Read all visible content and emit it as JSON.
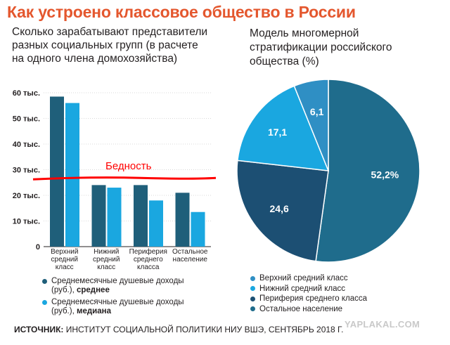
{
  "title": "Как устроено классовое общество в России",
  "bar_subtitle": "Сколько зарабатывают представители разных социальных групп (в расчете на одного члена домохозяйства)",
  "pie_subtitle": "Модель многомерной стратификации российского общества (%)",
  "poverty_label": "Бедность",
  "source": {
    "label": "ИСТОЧНИК:",
    "text": "ИНСТИТУТ СОЦИАЛЬНОЙ ПОЛИТИКИ НИУ ВШЭ, СЕНТЯБРЬ 2018 Г."
  },
  "watermark": "YAPLAKAL.COM",
  "colors": {
    "title": "#e4572e",
    "dark": "#1f5f7a",
    "light": "#1aa7e0",
    "poverty_line": "#ff0000",
    "pie": [
      "#1f6c8c",
      "#1c4f73",
      "#1aa7e0",
      "#2f8fc4"
    ]
  },
  "bar_legend": [
    {
      "text": "Среднемесячные душевые доходы (руб.), ",
      "bold": "среднее"
    },
    {
      "text": "Среднемесячные душевые доходы (руб.), ",
      "bold": "медиана"
    }
  ],
  "pie_legend": [
    "Верхний средний класс",
    "Нижний средний класс",
    "Периферия среднего класса",
    "Остальное население"
  ],
  "chart_data": [
    {
      "type": "bar",
      "categories": [
        [
          "Верхний",
          "средний",
          "класс"
        ],
        [
          "Нижний",
          "средний",
          "класс"
        ],
        [
          "Периферия",
          "среднего",
          "класса"
        ],
        [
          "Остальное",
          "население"
        ]
      ],
      "series": [
        {
          "name": "Среднемесячные душевые доходы (руб.), среднее",
          "values": [
            58500,
            24000,
            24000,
            21000
          ]
        },
        {
          "name": "Среднемесячные душевые доходы (руб.), медиана",
          "values": [
            56000,
            23000,
            18000,
            13500
          ]
        }
      ],
      "ytick_labels": [
        "0",
        "10 тыс.",
        "20 тыс.",
        "30 тыс.",
        "40 тыс.",
        "50 тыс.",
        "60 тыс."
      ],
      "ylim": [
        0,
        60000
      ],
      "annotation": {
        "text": "Бедность",
        "y": 26500
      }
    },
    {
      "type": "pie",
      "labels": [
        "Остальное население",
        "Периферия среднего класса",
        "Нижний средний класс",
        "Верхний средний класс"
      ],
      "values": [
        52.2,
        24.6,
        17.1,
        6.1
      ],
      "value_labels": [
        "52,2%",
        "24,6",
        "17,1",
        "6,1"
      ]
    }
  ]
}
